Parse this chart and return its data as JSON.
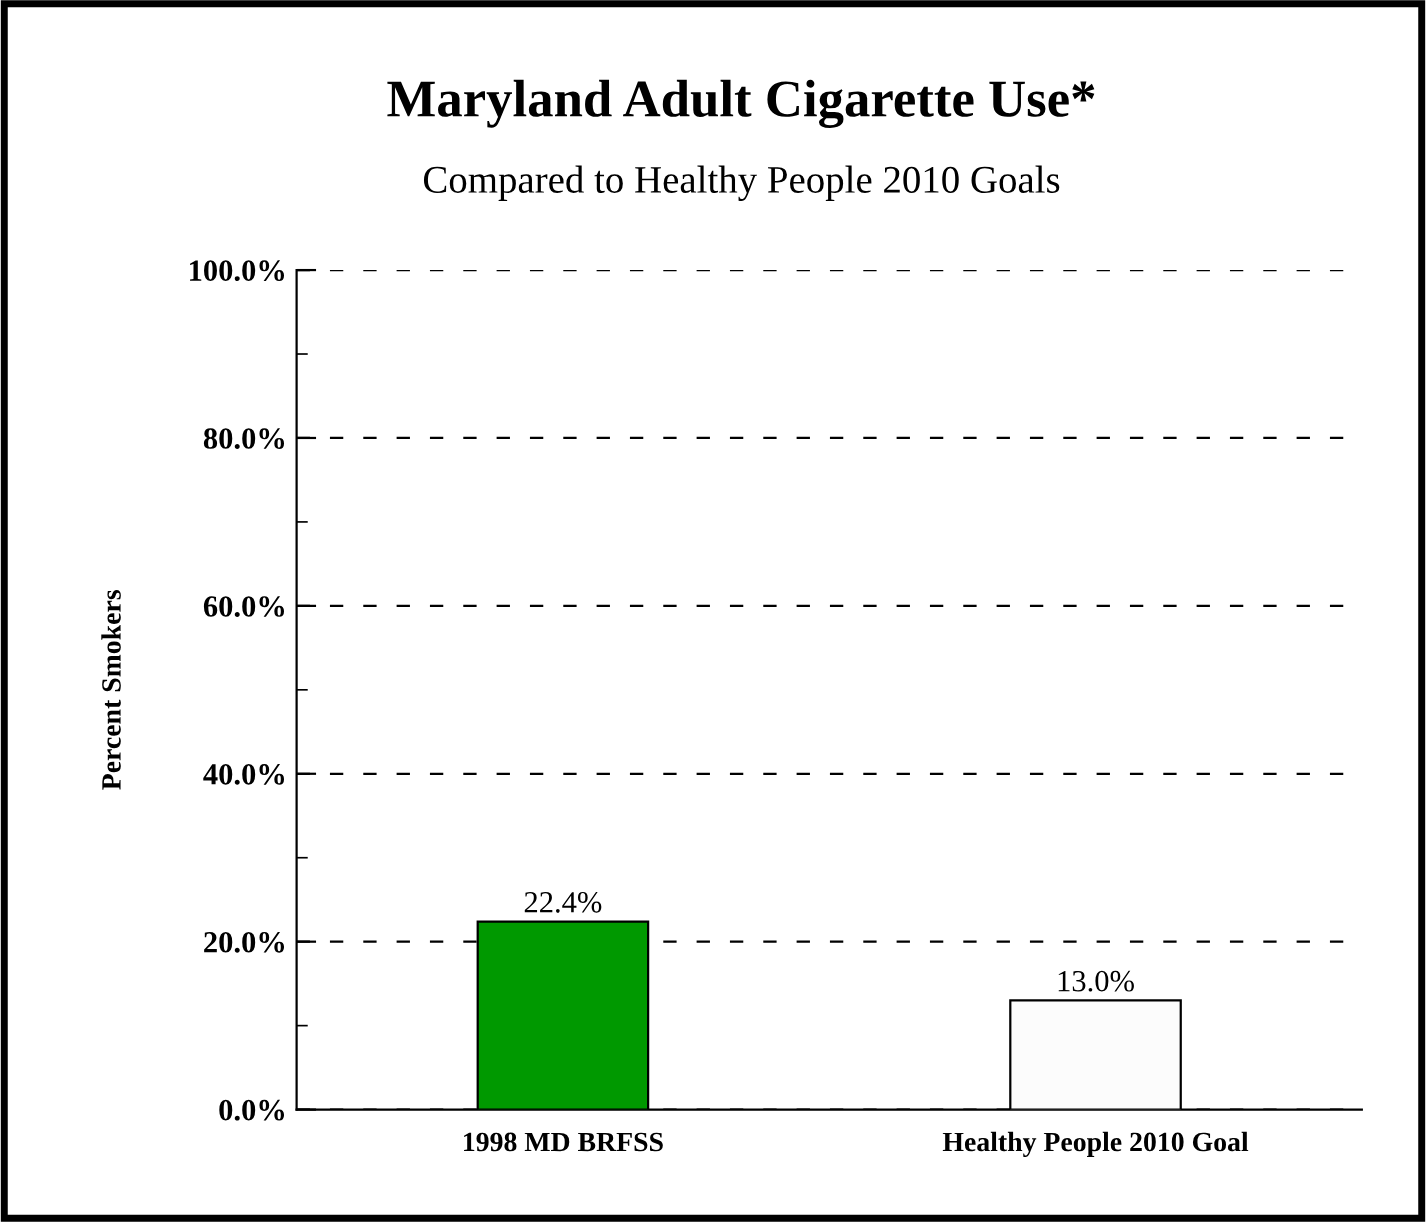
{
  "chart_data": {
    "type": "bar",
    "title": "Maryland Adult Cigarette Use*",
    "subtitle": "Compared to Healthy People 2010 Goals",
    "ylabel": "Percent Smokers",
    "categories": [
      "1998 MD BRFSS",
      "Healthy People 2010 Goal"
    ],
    "values": [
      22.4,
      13.0
    ],
    "colors": [
      "#009900",
      "#fcfcfc"
    ],
    "value_labels": [
      "22.4%",
      "13.0%"
    ],
    "ylim": [
      0,
      100
    ],
    "yticks": [
      {
        "value": 0,
        "label": "0.0%"
      },
      {
        "value": 20,
        "label": "20.0%"
      },
      {
        "value": 40,
        "label": "40.0%"
      },
      {
        "value": 60,
        "label": "60.0%"
      },
      {
        "value": 80,
        "label": "80.0%"
      },
      {
        "value": 100,
        "label": "100.0%"
      }
    ],
    "grid": "y"
  }
}
